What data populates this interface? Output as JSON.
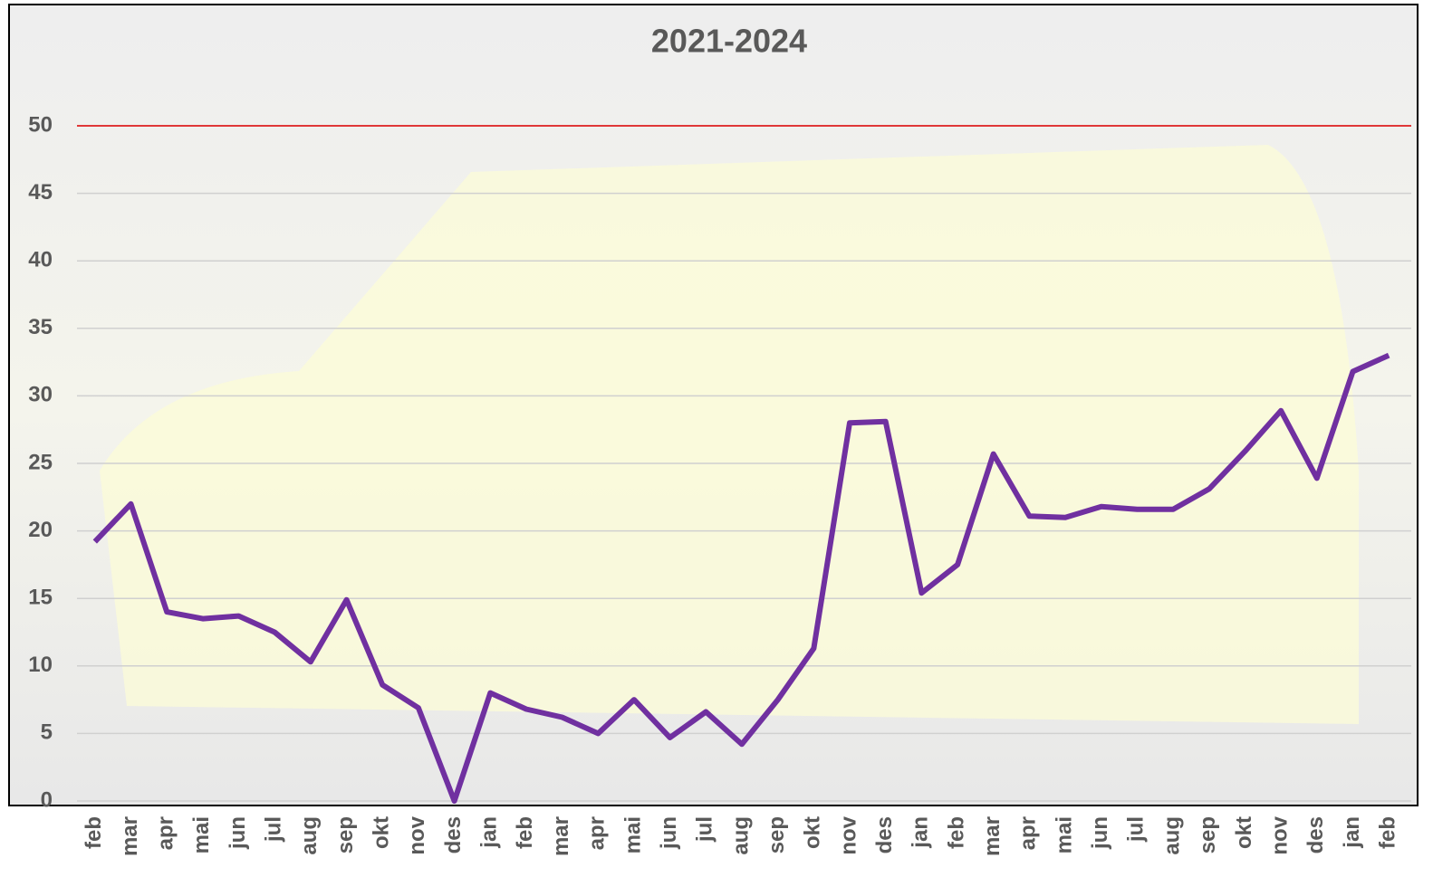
{
  "chart_data": {
    "type": "line",
    "title": "2021-2024",
    "categories": [
      "feb",
      "mar",
      "apr",
      "mai",
      "jun",
      "jul",
      "aug",
      "sep",
      "okt",
      "nov",
      "des",
      "jan",
      "feb",
      "mar",
      "apr",
      "mai",
      "jun",
      "jul",
      "aug",
      "sep",
      "okt",
      "nov",
      "des",
      "jan",
      "feb",
      "mar",
      "apr",
      "mai",
      "jun",
      "jul",
      "aug",
      "sep",
      "okt",
      "nov",
      "des",
      "jan",
      "feb"
    ],
    "values": [
      19.2,
      22,
      14,
      13.5,
      13.7,
      12.5,
      10.3,
      14.9,
      8.6,
      6.9,
      0,
      8,
      6.8,
      6.2,
      5,
      7.5,
      4.7,
      6.6,
      4.2,
      7.5,
      11.3,
      28,
      28.1,
      15.4,
      17.5,
      25.7,
      21.1,
      21,
      21.8,
      21.6,
      21.6,
      23.1,
      25.9,
      28.9,
      23.9,
      31.8,
      33
    ],
    "color": "#7030a0",
    "ylim": [
      0,
      50
    ],
    "yticks": [
      0,
      5,
      10,
      15,
      20,
      25,
      30,
      35,
      40,
      45,
      50
    ],
    "grid": true,
    "reference_line": {
      "value": 50,
      "color": "#e00000"
    }
  }
}
